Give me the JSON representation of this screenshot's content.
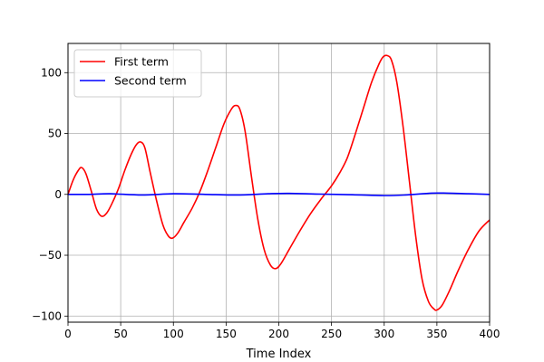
{
  "chart_data": {
    "type": "line",
    "title": "",
    "xlabel": "Time Index",
    "ylabel": "",
    "xlim": [
      0,
      400
    ],
    "ylim": [
      -105,
      124
    ],
    "xticks": [
      0,
      50,
      100,
      150,
      200,
      250,
      300,
      350,
      400
    ],
    "yticks": [
      -100,
      -50,
      0,
      50,
      100
    ],
    "xtick_labels": [
      "0",
      "50",
      "100",
      "150",
      "200",
      "250",
      "300",
      "350",
      "400"
    ],
    "ytick_labels": [
      "−100",
      "−50",
      "0",
      "50",
      "100"
    ],
    "grid": true,
    "legend_position": "top-left",
    "series": [
      {
        "name": "First term",
        "color": "#ff0000",
        "points": [
          [
            0,
            0
          ],
          [
            5,
            12
          ],
          [
            10,
            20
          ],
          [
            13,
            22
          ],
          [
            17,
            17
          ],
          [
            22,
            3
          ],
          [
            27,
            -12
          ],
          [
            32,
            -18
          ],
          [
            37,
            -15
          ],
          [
            42,
            -7
          ],
          [
            48,
            5
          ],
          [
            54,
            20
          ],
          [
            60,
            33
          ],
          [
            65,
            41
          ],
          [
            69,
            43
          ],
          [
            73,
            38
          ],
          [
            78,
            18
          ],
          [
            84,
            -5
          ],
          [
            90,
            -25
          ],
          [
            95,
            -34
          ],
          [
            99,
            -36
          ],
          [
            104,
            -32
          ],
          [
            110,
            -23
          ],
          [
            118,
            -11
          ],
          [
            125,
            2
          ],
          [
            132,
            18
          ],
          [
            140,
            38
          ],
          [
            148,
            58
          ],
          [
            155,
            70
          ],
          [
            159,
            73
          ],
          [
            163,
            70
          ],
          [
            168,
            52
          ],
          [
            174,
            15
          ],
          [
            180,
            -20
          ],
          [
            186,
            -45
          ],
          [
            192,
            -58
          ],
          [
            197,
            -61
          ],
          [
            202,
            -57
          ],
          [
            210,
            -45
          ],
          [
            220,
            -30
          ],
          [
            230,
            -16
          ],
          [
            240,
            -4
          ],
          [
            250,
            7
          ],
          [
            258,
            18
          ],
          [
            265,
            30
          ],
          [
            272,
            48
          ],
          [
            280,
            70
          ],
          [
            288,
            92
          ],
          [
            295,
            107
          ],
          [
            299,
            113
          ],
          [
            303,
            114
          ],
          [
            307,
            110
          ],
          [
            312,
            92
          ],
          [
            318,
            55
          ],
          [
            324,
            10
          ],
          [
            330,
            -35
          ],
          [
            336,
            -70
          ],
          [
            342,
            -88
          ],
          [
            347,
            -94
          ],
          [
            350,
            -95
          ],
          [
            355,
            -91
          ],
          [
            362,
            -79
          ],
          [
            370,
            -63
          ],
          [
            380,
            -45
          ],
          [
            390,
            -30
          ],
          [
            400,
            -21
          ]
        ]
      },
      {
        "name": "Second term",
        "color": "#0000ff",
        "points": [
          [
            0,
            0
          ],
          [
            20,
            0
          ],
          [
            40,
            0.5
          ],
          [
            70,
            -0.5
          ],
          [
            100,
            0.5
          ],
          [
            130,
            0
          ],
          [
            160,
            -0.5
          ],
          [
            190,
            0.5
          ],
          [
            210,
            0.8
          ],
          [
            240,
            0.2
          ],
          [
            270,
            -0.3
          ],
          [
            300,
            -1
          ],
          [
            320,
            -0.5
          ],
          [
            345,
            1
          ],
          [
            360,
            1
          ],
          [
            380,
            0.5
          ],
          [
            400,
            0
          ]
        ]
      }
    ]
  }
}
